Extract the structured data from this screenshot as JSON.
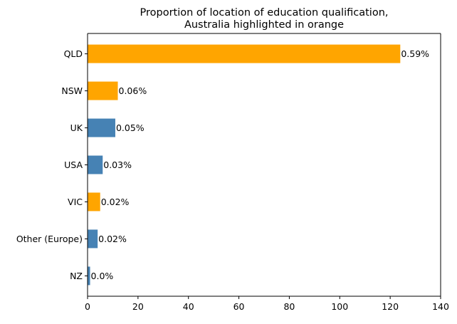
{
  "chart_data": {
    "type": "bar",
    "orientation": "horizontal",
    "title_lines": [
      "Proportion of location of education qualification,",
      "Australia highlighted in orange"
    ],
    "xlabel": "",
    "ylabel": "",
    "categories": [
      "QLD",
      "NSW",
      "UK",
      "USA",
      "VIC",
      "Other (Europe)",
      "NZ"
    ],
    "values": [
      124,
      12,
      11,
      6,
      5,
      4,
      1
    ],
    "data_labels": [
      "0.59%",
      "0.06%",
      "0.05%",
      "0.03%",
      "0.02%",
      "0.02%",
      "0.0%"
    ],
    "highlighted": [
      true,
      true,
      false,
      false,
      true,
      false,
      false
    ],
    "colors": {
      "highlight": "#ffa500",
      "default": "#4682b4",
      "axis": "#000000"
    },
    "xlim": [
      0,
      140
    ],
    "xticks": [
      0,
      20,
      40,
      60,
      80,
      100,
      120,
      140
    ],
    "grid": false,
    "legend": "none"
  }
}
